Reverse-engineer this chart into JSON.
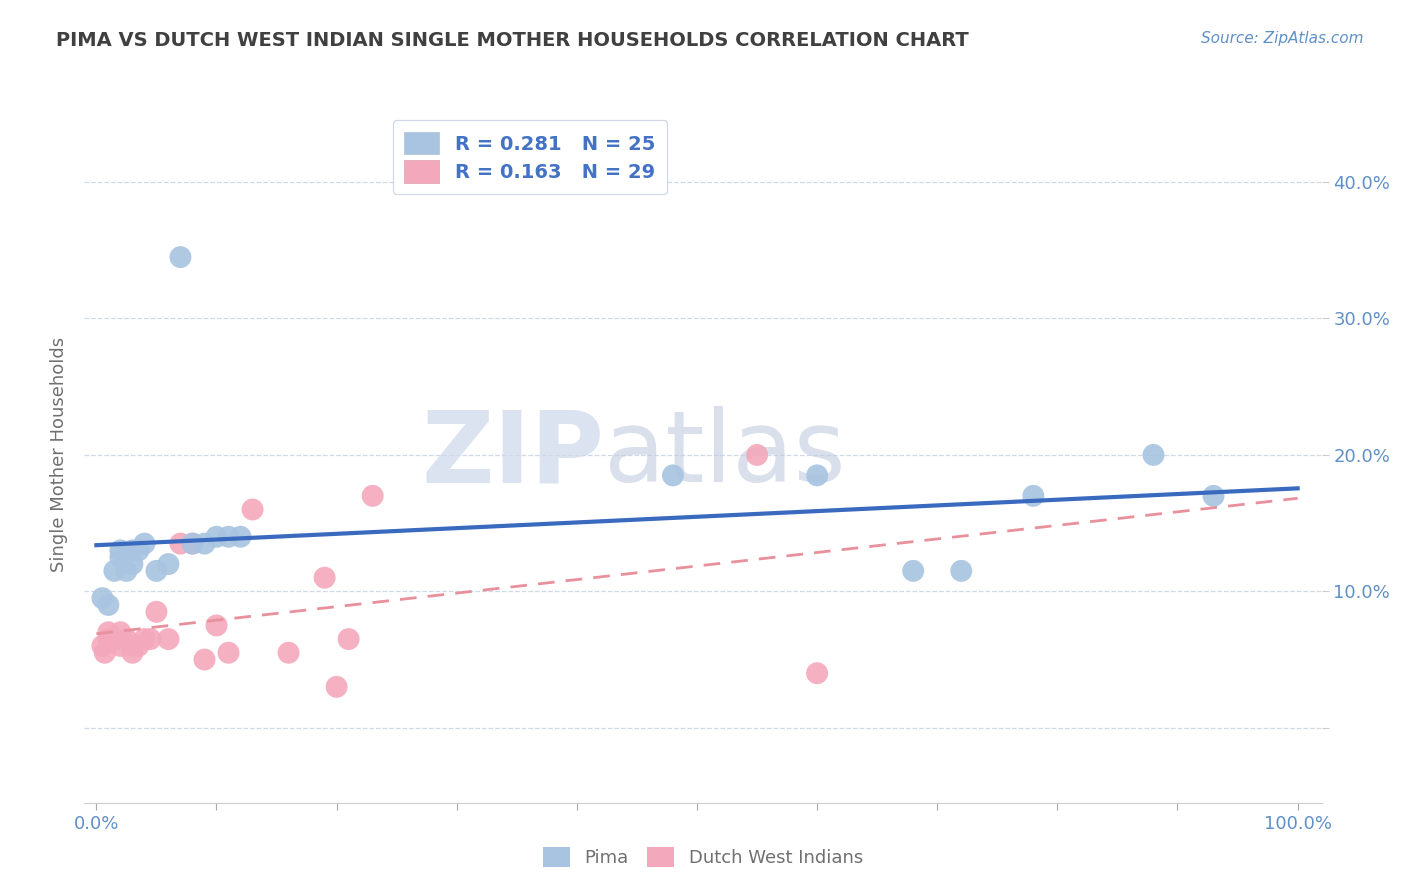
{
  "title": "PIMA VS DUTCH WEST INDIAN SINGLE MOTHER HOUSEHOLDS CORRELATION CHART",
  "source_text": "Source: ZipAtlas.com",
  "ylabel": "Single Mother Households",
  "xlabel": "",
  "xlim": [
    -0.01,
    1.02
  ],
  "ylim": [
    -0.055,
    0.455
  ],
  "xticks": [
    0.0,
    0.1,
    0.2,
    0.3,
    0.4,
    0.5,
    0.6,
    0.7,
    0.8,
    0.9,
    1.0
  ],
  "yticks": [
    0.0,
    0.1,
    0.2,
    0.3,
    0.4
  ],
  "ytick_labels_right": [
    "",
    "10.0%",
    "20.0%",
    "30.0%",
    "40.0%"
  ],
  "xtick_labels": [
    "0.0%",
    "",
    "",
    "",
    "",
    "",
    "",
    "",
    "",
    "",
    "100.0%"
  ],
  "pima_R": 0.281,
  "pima_N": 25,
  "dwi_R": 0.163,
  "dwi_N": 29,
  "pima_color": "#a8c4e0",
  "dwi_color": "#f4a8bc",
  "pima_line_color": "#3a6abf",
  "dwi_line_color": "#e8909c",
  "background_color": "#ffffff",
  "grid_color": "#d0d8e8",
  "watermark_zip": "ZIP",
  "watermark_atlas": "atlas",
  "watermark_color_zip": "#c8d4e8",
  "watermark_color_atlas": "#c0cce0",
  "title_color": "#404040",
  "axis_label_color": "#707070",
  "tick_label_color": "#6090c8",
  "legend_text_color": "#4472c4",
  "legend_border_color": "#d0d8e8",
  "pima_x": [
    0.005,
    0.01,
    0.015,
    0.02,
    0.02,
    0.025,
    0.03,
    0.03,
    0.035,
    0.04,
    0.05,
    0.06,
    0.07,
    0.08,
    0.09,
    0.1,
    0.11,
    0.12,
    0.48,
    0.6,
    0.68,
    0.72,
    0.78,
    0.88,
    0.93
  ],
  "pima_y": [
    0.095,
    0.09,
    0.115,
    0.125,
    0.13,
    0.115,
    0.12,
    0.13,
    0.13,
    0.135,
    0.115,
    0.12,
    0.345,
    0.135,
    0.135,
    0.14,
    0.14,
    0.14,
    0.185,
    0.185,
    0.115,
    0.115,
    0.17,
    0.2,
    0.17
  ],
  "dwi_x": [
    0.005,
    0.007,
    0.01,
    0.01,
    0.013,
    0.015,
    0.02,
    0.02,
    0.025,
    0.03,
    0.03,
    0.035,
    0.04,
    0.045,
    0.05,
    0.06,
    0.07,
    0.08,
    0.09,
    0.1,
    0.11,
    0.13,
    0.16,
    0.19,
    0.2,
    0.21,
    0.23,
    0.55,
    0.6
  ],
  "dwi_y": [
    0.06,
    0.055,
    0.07,
    0.065,
    0.065,
    0.065,
    0.07,
    0.06,
    0.065,
    0.055,
    0.06,
    0.06,
    0.065,
    0.065,
    0.085,
    0.065,
    0.135,
    0.135,
    0.05,
    0.075,
    0.055,
    0.16,
    0.055,
    0.11,
    0.03,
    0.065,
    0.17,
    0.2,
    0.04
  ]
}
